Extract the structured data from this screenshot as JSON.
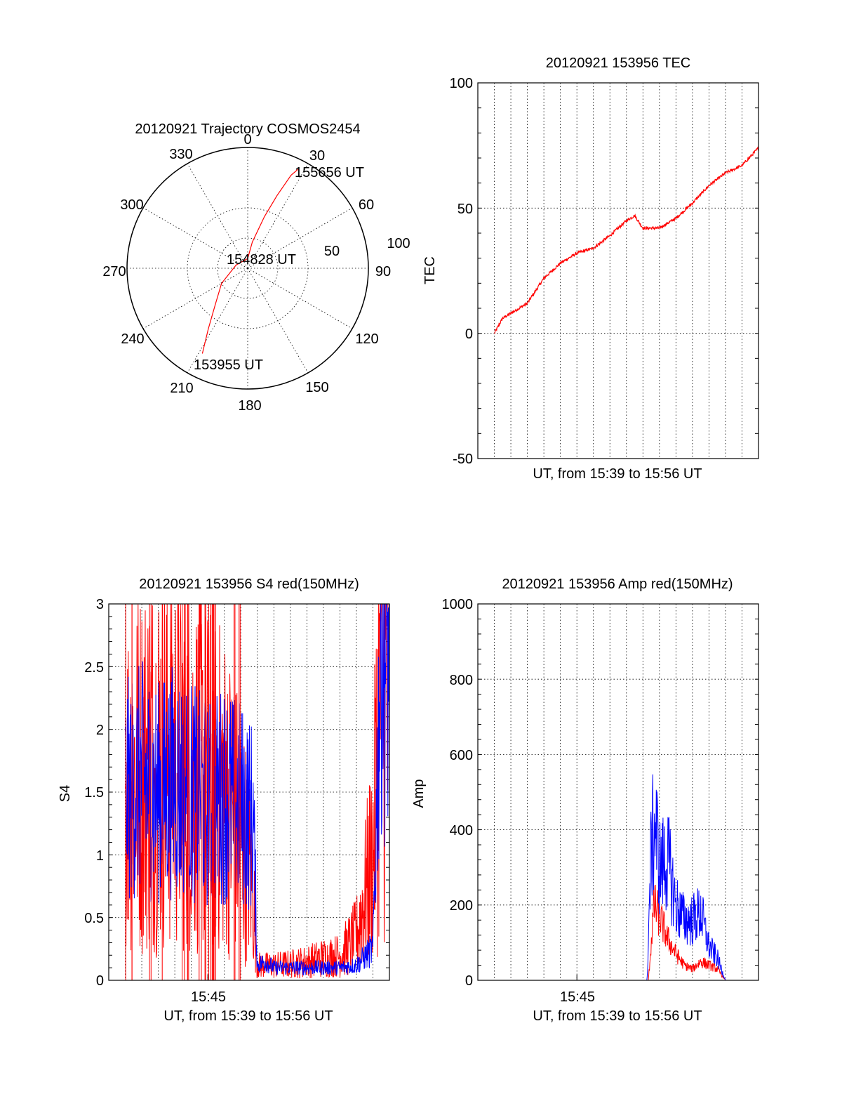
{
  "colors": {
    "red": "#ff0000",
    "blue": "#0000ff",
    "axes": "#000000"
  },
  "chart_data": [
    {
      "id": "polar",
      "type": "scatter",
      "title": "20120921 Trajectory COSMOS2454",
      "azimuth_labels": [
        "0",
        "30",
        "60",
        "90",
        "120",
        "150",
        "180",
        "210",
        "240",
        "270",
        "300",
        "330"
      ],
      "radius_labels": [
        "50",
        "100"
      ],
      "rlim": [
        0,
        100
      ],
      "grid": true,
      "series": [
        {
          "color": "red",
          "points": [
            [
              208,
              80
            ],
            [
              213,
              60
            ],
            [
              222,
              40
            ],
            [
              240,
              25
            ],
            [
              285,
              10
            ],
            [
              360,
              8
            ],
            [
              10,
              22
            ],
            [
              18,
              45
            ],
            [
              22,
              65
            ],
            [
              25,
              85
            ],
            [
              27,
              92
            ]
          ]
        }
      ],
      "annotations": [
        {
          "text": "155656 UT",
          "az": 27,
          "r": 92
        },
        {
          "text": "154828 UT",
          "az": 0,
          "r": 0
        },
        {
          "text": "153955 UT",
          "az": 208,
          "r": 80
        }
      ]
    },
    {
      "id": "tec",
      "type": "line",
      "title": "20120921 153956 TEC",
      "xlabel": "UT, from 15:39 to 15:56 UT",
      "ylabel": "TEC",
      "xlim": [
        "15:39",
        "15:56"
      ],
      "ylim": [
        -50,
        100
      ],
      "yticks": [
        "100",
        "50",
        "0",
        "-50"
      ],
      "xticks": [],
      "grid": true,
      "series": [
        {
          "color": "red",
          "x": [
            "15:40:00",
            "15:40:30",
            "15:41:00",
            "15:42:00",
            "15:43:00",
            "15:44:00",
            "15:45:00",
            "15:46:00",
            "15:47:00",
            "15:48:00",
            "15:48:30",
            "15:49:00",
            "15:50:00",
            "15:51:00",
            "15:52:00",
            "15:53:00",
            "15:54:00",
            "15:55:00",
            "15:56:00"
          ],
          "y": [
            0,
            6,
            8,
            12,
            22,
            28,
            32,
            34,
            39,
            45,
            47,
            42,
            42,
            46,
            52,
            59,
            64,
            67,
            74
          ]
        }
      ]
    },
    {
      "id": "s4",
      "type": "line",
      "title": "20120921 153956 S4 red(150MHz)",
      "xlabel": "UT, from 15:39 to 15:56 UT",
      "ylabel": "S4",
      "xlim": [
        "15:39",
        "15:56"
      ],
      "ylim": [
        0,
        3
      ],
      "yticks": [
        "3",
        "2.5",
        "2",
        "1.5",
        "1",
        "0.5",
        "0"
      ],
      "xticks": [
        "15:45"
      ],
      "grid": true,
      "series": [
        {
          "color": "red",
          "x": [
            "15:40:00",
            "15:41:00",
            "15:42:00",
            "15:43:00",
            "15:44:00",
            "15:45:00",
            "15:46:00",
            "15:47:00",
            "15:47:30",
            "15:47:45",
            "15:48:00",
            "15:48:30",
            "15:49:00",
            "15:50:00",
            "15:51:00",
            "15:52:00",
            "15:53:00",
            "15:54:00",
            "15:55:00",
            "15:55:30",
            "15:56:00"
          ],
          "y": [
            1.6,
            1.7,
            1.8,
            1.8,
            1.7,
            1.6,
            1.5,
            1.2,
            0.9,
            0.7,
            0.12,
            0.12,
            0.12,
            0.13,
            0.15,
            0.18,
            0.2,
            0.35,
            1.0,
            2.5,
            2.0
          ]
        },
        {
          "color": "blue",
          "x": [
            "15:40:00",
            "15:41:00",
            "15:42:00",
            "15:43:00",
            "15:44:00",
            "15:45:00",
            "15:46:00",
            "15:47:00",
            "15:47:45",
            "15:48:00",
            "15:48:30",
            "15:49:00",
            "15:50:00",
            "15:51:00",
            "15:52:00",
            "15:53:00",
            "15:54:00",
            "15:55:00",
            "15:55:30",
            "15:56:00"
          ],
          "y": [
            1.5,
            1.6,
            1.5,
            1.6,
            1.5,
            1.4,
            1.5,
            1.4,
            1.3,
            0.12,
            0.15,
            0.1,
            0.1,
            0.1,
            0.1,
            0.1,
            0.12,
            0.25,
            2.8,
            2.5
          ]
        }
      ]
    },
    {
      "id": "amp",
      "type": "line",
      "title": "20120921 153956 Amp red(150MHz)",
      "xlabel": "UT, from 15:39 to 15:56 UT",
      "ylabel": "Amp",
      "xlim": [
        "15:39",
        "15:56"
      ],
      "ylim": [
        0,
        1000
      ],
      "yticks": [
        "1000",
        "800",
        "600",
        "400",
        "200",
        "0"
      ],
      "xticks": [
        "15:45"
      ],
      "grid": true,
      "series": [
        {
          "color": "red",
          "x": [
            "15:40:00",
            "15:45:00",
            "15:48:00",
            "15:49:00",
            "15:49:20",
            "15:49:40",
            "15:50:00",
            "15:50:30",
            "15:51:00",
            "15:51:30",
            "15:52:00",
            "15:52:30",
            "15:53:00",
            "15:53:30",
            "15:54:00",
            "15:56:00"
          ],
          "y": [
            0,
            0,
            0,
            0,
            0,
            200,
            170,
            110,
            70,
            40,
            30,
            50,
            40,
            30,
            0,
            0
          ]
        },
        {
          "color": "blue",
          "x": [
            "15:40:00",
            "15:45:00",
            "15:48:00",
            "15:49:00",
            "15:49:15",
            "15:49:30",
            "15:49:45",
            "15:50:00",
            "15:50:30",
            "15:51:00",
            "15:51:30",
            "15:52:00",
            "15:52:30",
            "15:53:00",
            "15:53:30",
            "15:54:00",
            "15:56:00"
          ],
          "y": [
            0,
            0,
            0,
            0,
            0,
            350,
            420,
            300,
            320,
            200,
            160,
            160,
            180,
            90,
            60,
            0,
            0
          ]
        }
      ]
    }
  ]
}
